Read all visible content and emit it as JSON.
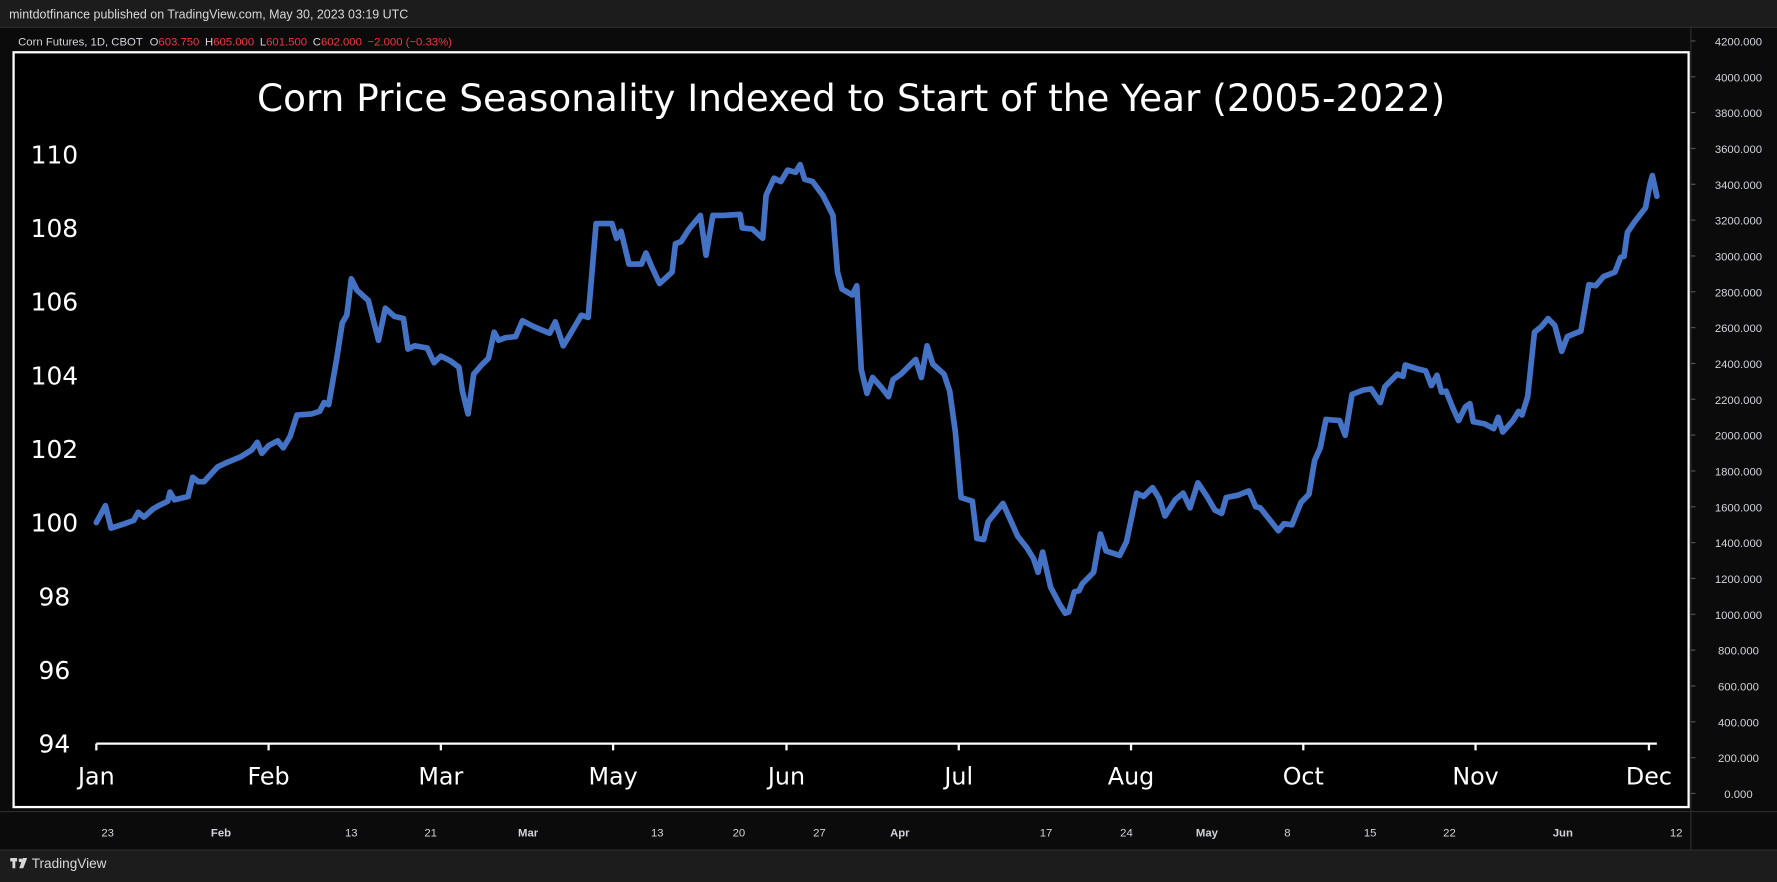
{
  "header": {
    "text": "mintdotfinance published on TradingView.com, May 30, 2023 03:19 UTC"
  },
  "legend": {
    "symbol": "Corn Futures, 1D, CBOT",
    "items": [
      {
        "label": "O",
        "value": "603.750"
      },
      {
        "label": "H",
        "value": "605.000"
      },
      {
        "label": "L",
        "value": "601.500"
      },
      {
        "label": "C",
        "value": "602.000"
      }
    ],
    "change": "−2.000 (−0.33%)"
  },
  "price_scale": {
    "ylim": [
      0,
      4200
    ],
    "ticks": [
      {
        "value": 4200,
        "label": "4200.000"
      },
      {
        "value": 4000,
        "label": "4000.000"
      },
      {
        "value": 3800,
        "label": "3800.000"
      },
      {
        "value": 3600,
        "label": "3600.000"
      },
      {
        "value": 3400,
        "label": "3400.000"
      },
      {
        "value": 3200,
        "label": "3200.000"
      },
      {
        "value": 3000,
        "label": "3000.000"
      },
      {
        "value": 2800,
        "label": "2800.000"
      },
      {
        "value": 2600,
        "label": "2600.000"
      },
      {
        "value": 2400,
        "label": "2400.000"
      },
      {
        "value": 2200,
        "label": "2200.000"
      },
      {
        "value": 2000,
        "label": "2000.000"
      },
      {
        "value": 1800,
        "label": "1800.000"
      },
      {
        "value": 1600,
        "label": "1600.000"
      },
      {
        "value": 1400,
        "label": "1400.000"
      },
      {
        "value": 1200,
        "label": "1200.000"
      },
      {
        "value": 1000,
        "label": "1000.000"
      },
      {
        "value": 800,
        "label": "800.000"
      },
      {
        "value": 600,
        "label": "600.000"
      },
      {
        "value": 400,
        "label": "400.000"
      },
      {
        "value": 200,
        "label": "200.000"
      },
      {
        "value": 0,
        "label": "0.000"
      }
    ]
  },
  "time_scale": {
    "labels": [
      "23",
      "Feb",
      "13",
      "21",
      "Mar",
      "13",
      "20",
      "27",
      "Apr",
      "17",
      "24",
      "May",
      "8",
      "15",
      "22",
      "Jun",
      "12"
    ]
  },
  "footer": {
    "brand": "TradingView"
  },
  "chart_data": {
    "type": "line",
    "title": "Corn Price Seasonality Indexed to Start of the Year (2005-2022)",
    "color": "#4472c4",
    "xlim": [
      0,
      1377
    ],
    "xticks": [
      {
        "value": 0,
        "label": "Jan"
      },
      {
        "value": 152,
        "label": "Feb"
      },
      {
        "value": 304,
        "label": "Mar"
      },
      {
        "value": 456,
        "label": "May"
      },
      {
        "value": 609,
        "label": "Jun"
      },
      {
        "value": 761,
        "label": "Jul"
      },
      {
        "value": 913,
        "label": "Aug"
      },
      {
        "value": 1065,
        "label": "Oct"
      },
      {
        "value": 1217,
        "label": "Nov"
      },
      {
        "value": 1370,
        "label": "Dec"
      }
    ],
    "ylim": [
      94,
      110
    ],
    "yticks": [
      94,
      96,
      98,
      100,
      102,
      104,
      106,
      108,
      110
    ],
    "x": [
      0,
      8,
      13,
      25,
      33,
      37,
      42,
      50,
      55,
      63,
      65,
      69,
      81,
      85,
      90,
      95,
      107,
      115,
      127,
      137,
      142,
      146,
      152,
      160,
      165,
      171,
      177,
      190,
      197,
      201,
      205,
      212,
      217,
      221,
      225,
      230,
      240,
      249,
      255,
      263,
      271,
      275,
      281,
      292,
      298,
      304,
      312,
      320,
      323,
      328,
      333,
      340,
      346,
      351,
      355,
      361,
      370,
      376,
      386,
      400,
      405,
      412,
      418,
      428,
      434,
      441,
      455,
      459,
      463,
      470,
      481,
      485,
      490,
      497,
      508,
      511,
      516,
      523,
      533,
      538,
      544,
      554,
      568,
      570,
      579,
      588,
      591,
      598,
      604,
      610,
      617,
      621,
      625,
      632,
      641,
      650,
      654,
      658,
      667,
      671,
      675,
      680,
      685,
      693,
      699,
      703,
      710,
      723,
      728,
      733,
      738,
      748,
      753,
      758,
      763,
      773,
      777,
      783,
      787,
      800,
      805,
      813,
      821,
      827,
      831,
      835,
      842,
      850,
      855,
      858,
      863,
      867,
      870,
      880,
      886,
      891,
      903,
      909,
      918,
      924,
      932,
      938,
      943,
      952,
      959,
      965,
      972,
      980,
      987,
      993,
      997,
      1007,
      1017,
      1023,
      1027,
      1035,
      1043,
      1048,
      1055,
      1063,
      1070,
      1075,
      1080,
      1085,
      1097,
      1102,
      1108,
      1118,
      1125,
      1133,
      1137,
      1148,
      1153,
      1155,
      1165,
      1173,
      1178,
      1183,
      1187,
      1191,
      1197,
      1202,
      1208,
      1212,
      1215,
      1225,
      1233,
      1237,
      1241,
      1250,
      1255,
      1258,
      1263,
      1269,
      1275,
      1281,
      1287,
      1293,
      1298,
      1305,
      1310,
      1317,
      1323,
      1330,
      1340,
      1345,
      1348,
      1351,
      1357,
      1367,
      1371,
      1373,
      1377
    ],
    "values": [
      100.0,
      100.46,
      99.85,
      99.97,
      100.06,
      100.28,
      100.15,
      100.37,
      100.46,
      100.58,
      100.83,
      100.62,
      100.71,
      101.23,
      101.11,
      101.11,
      101.51,
      101.63,
      101.78,
      101.97,
      102.18,
      101.88,
      102.09,
      102.22,
      102.03,
      102.34,
      102.92,
      102.95,
      103.02,
      103.26,
      103.2,
      104.43,
      105.42,
      105.63,
      106.62,
      106.31,
      106.03,
      104.95,
      105.82,
      105.6,
      105.54,
      104.71,
      104.8,
      104.74,
      104.34,
      104.52,
      104.4,
      104.22,
      103.57,
      102.95,
      104.03,
      104.28,
      104.46,
      105.17,
      104.95,
      105.02,
      105.05,
      105.48,
      105.32,
      105.14,
      105.45,
      104.8,
      105.11,
      105.63,
      105.57,
      108.12,
      108.12,
      107.72,
      107.91,
      107.02,
      107.02,
      107.32,
      106.95,
      106.49,
      106.8,
      107.57,
      107.63,
      107.97,
      108.34,
      107.26,
      108.34,
      108.34,
      108.37,
      108.0,
      107.97,
      107.72,
      108.89,
      109.35,
      109.26,
      109.57,
      109.51,
      109.72,
      109.32,
      109.26,
      108.89,
      108.34,
      106.8,
      106.34,
      106.18,
      106.43,
      104.15,
      103.51,
      103.94,
      103.66,
      103.42,
      103.88,
      104.03,
      104.43,
      103.94,
      104.8,
      104.31,
      104.03,
      103.57,
      102.46,
      100.68,
      100.58,
      99.57,
      99.54,
      100.03,
      100.52,
      100.18,
      99.63,
      99.32,
      99.02,
      98.65,
      99.2,
      98.25,
      97.78,
      97.54,
      97.57,
      98.12,
      98.15,
      98.34,
      98.65,
      99.69,
      99.23,
      99.11,
      99.48,
      100.8,
      100.71,
      100.95,
      100.65,
      100.18,
      100.62,
      100.8,
      100.4,
      101.08,
      100.71,
      100.34,
      100.25,
      100.68,
      100.74,
      100.86,
      100.43,
      100.4,
      100.09,
      99.78,
      99.97,
      99.94,
      100.55,
      100.77,
      101.69,
      102.03,
      102.8,
      102.77,
      102.37,
      103.48,
      103.6,
      103.63,
      103.26,
      103.69,
      104.03,
      103.97,
      104.28,
      104.18,
      104.12,
      103.72,
      104.0,
      103.54,
      103.57,
      103.11,
      102.77,
      103.14,
      103.23,
      102.74,
      102.68,
      102.55,
      102.86,
      102.46,
      102.77,
      103.02,
      102.92,
      103.42,
      105.17,
      105.32,
      105.54,
      105.35,
      104.65,
      105.05,
      105.14,
      105.2,
      106.46,
      106.43,
      106.68,
      106.8,
      107.2,
      107.23,
      107.88,
      108.15,
      108.55,
      109.2,
      109.42,
      108.86
    ]
  }
}
